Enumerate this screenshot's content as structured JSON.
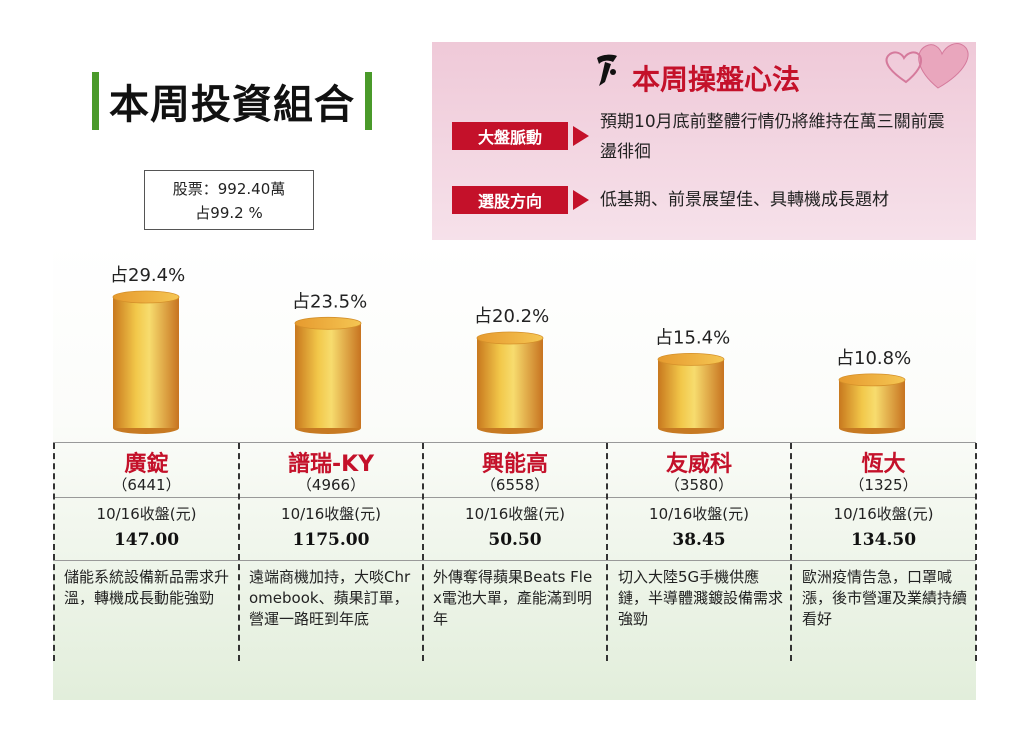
{
  "page_title": "本周投資組合",
  "summary": {
    "line1": "股票：992.40萬",
    "line2": "占99.2 %"
  },
  "tips": {
    "title": "本周操盤心法",
    "market_tag": "大盤脈動",
    "market_text": "預期10月底前整體行情仍將維持在萬三關前震盪徘徊",
    "pick_tag": "選股方向",
    "pick_text": "低基期、前景展望佳、具轉機成長題材"
  },
  "colors": {
    "accent_red": "#c4112a",
    "title_green": "#4a9a2a",
    "tips_bg": "#efc9d8",
    "cylinder_gold": "#e8b030"
  },
  "chart_data": {
    "type": "bar",
    "categories": [
      "廣錠",
      "譜瑞-KY",
      "興能高",
      "友威科",
      "恆大"
    ],
    "values": [
      29.4,
      23.5,
      20.2,
      15.4,
      10.8
    ],
    "value_labels": [
      "占29.4%",
      "占23.5%",
      "占20.2%",
      "占15.4%",
      "占10.8%"
    ],
    "unit": "%",
    "ylim": [
      0,
      30
    ]
  },
  "stocks": [
    {
      "name": "廣錠",
      "code": "（6441）",
      "price_label": "10/16收盤(元)",
      "price": "147.00",
      "desc": "儲能系統設備新品需求升溫，轉機成長動能強勁"
    },
    {
      "name": "譜瑞-KY",
      "code": "（4966）",
      "price_label": "10/16收盤(元)",
      "price": "1175.00",
      "desc": "遠端商機加持，大啖Chromebook、蘋果訂單，營運一路旺到年底"
    },
    {
      "name": "興能高",
      "code": "（6558）",
      "price_label": "10/16收盤(元)",
      "price": "50.50",
      "desc": "外傳奪得蘋果Beats Flex電池大單，產能滿到明年"
    },
    {
      "name": "友威科",
      "code": "（3580）",
      "price_label": "10/16收盤(元)",
      "price": "38.45",
      "desc": "切入大陸5G手機供應鏈，半導體濺鍍設備需求強勁"
    },
    {
      "name": "恆大",
      "code": "（1325）",
      "price_label": "10/16收盤(元)",
      "price": "134.50",
      "desc": "歐洲疫情告急，口罩喊漲，後市營運及業績持續看好"
    }
  ]
}
